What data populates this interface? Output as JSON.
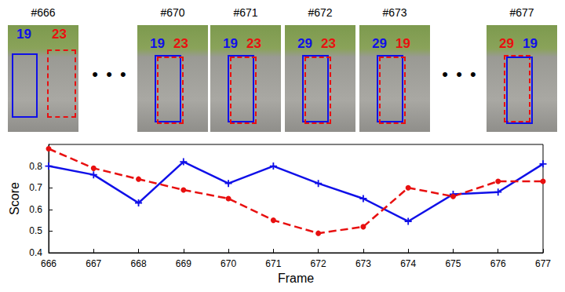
{
  "chart_data": {
    "type": "line",
    "x_label": "Frame",
    "y_label": "Score",
    "x": [
      666,
      667,
      668,
      669,
      670,
      671,
      672,
      673,
      674,
      675,
      676,
      677
    ],
    "xlim": [
      666,
      677
    ],
    "xticks": [
      666,
      667,
      668,
      669,
      670,
      671,
      672,
      673,
      674,
      675,
      676,
      677
    ],
    "ylim": [
      0.4,
      0.9
    ],
    "yticks": [
      0.4,
      0.5,
      0.6,
      0.7,
      0.8
    ],
    "grid": false,
    "series": [
      {
        "name": "19",
        "color": "#1010e8",
        "line_style": "solid",
        "marker": "plus",
        "values": [
          0.8,
          0.76,
          0.63,
          0.82,
          0.72,
          0.8,
          0.72,
          0.65,
          0.545,
          0.67,
          0.68,
          0.81
        ]
      },
      {
        "name": "23",
        "color": "#e81010",
        "line_style": "dashed",
        "marker": "circle",
        "values": [
          0.88,
          0.79,
          0.74,
          0.69,
          0.65,
          0.55,
          0.49,
          0.52,
          0.7,
          0.66,
          0.73,
          0.73
        ]
      }
    ]
  },
  "panels": [
    {
      "frame": "#666",
      "boxes": [
        {
          "id": "19",
          "color": "#1010e8",
          "line_style": "solid"
        },
        {
          "id": "23",
          "color": "#e81010",
          "line_style": "dashed"
        }
      ]
    },
    {
      "gap": "• • •"
    },
    {
      "frame": "#670",
      "boxes": [
        {
          "id": "19",
          "color": "#1010e8",
          "line_style": "solid"
        },
        {
          "id": "23",
          "color": "#e81010",
          "line_style": "dashed"
        }
      ]
    },
    {
      "frame": "#671",
      "boxes": [
        {
          "id": "19",
          "color": "#1010e8",
          "line_style": "solid"
        },
        {
          "id": "23",
          "color": "#e81010",
          "line_style": "dashed"
        }
      ]
    },
    {
      "frame": "#672",
      "boxes": [
        {
          "id": "29",
          "color": "#1010e8",
          "line_style": "solid"
        },
        {
          "id": "23",
          "color": "#e81010",
          "line_style": "dashed"
        }
      ]
    },
    {
      "frame": "#673",
      "boxes": [
        {
          "id": "29",
          "color": "#1010e8",
          "line_style": "solid"
        },
        {
          "id": "19",
          "color": "#e81010",
          "line_style": "dashed"
        }
      ]
    },
    {
      "gap": "• • •"
    },
    {
      "frame": "#677",
      "boxes": [
        {
          "id": "29",
          "color": "#e81010",
          "line_style": "dashed"
        },
        {
          "id": "19",
          "color": "#1010e8",
          "line_style": "solid"
        }
      ]
    }
  ]
}
